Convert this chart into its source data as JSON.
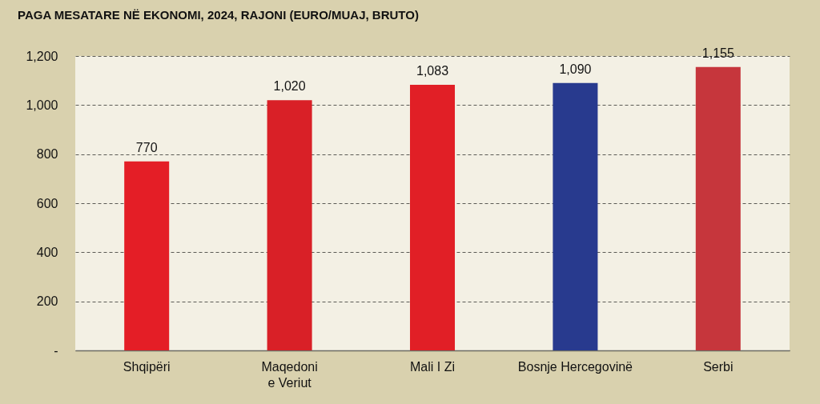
{
  "chart_data": {
    "type": "bar",
    "title": "PAGA MESATARE NË EKONOMI, 2024, RAJONI (EURO/MUAJ, BRUTO)",
    "categories": [
      "Shqipëri",
      "Maqedoni\ne Veriut",
      "Mali I Zi",
      "Bosnje Hercegovinë",
      "Serbi"
    ],
    "values": [
      770,
      1020,
      1083,
      1090,
      1155
    ],
    "colors": [
      "#e41e26",
      "#d92027",
      "#e11f26",
      "#283a8e",
      "#c6363c"
    ],
    "value_labels": [
      "770",
      "1,020",
      "1,083",
      "1,090",
      "1,155"
    ],
    "ylim": [
      0,
      1200
    ],
    "yticks": [
      {
        "value": 0,
        "label": "-"
      },
      200,
      400,
      600,
      800,
      {
        "value": 1000,
        "label": "1,000"
      },
      {
        "value": 1200,
        "label": "1,200"
      }
    ],
    "grid": "y"
  }
}
